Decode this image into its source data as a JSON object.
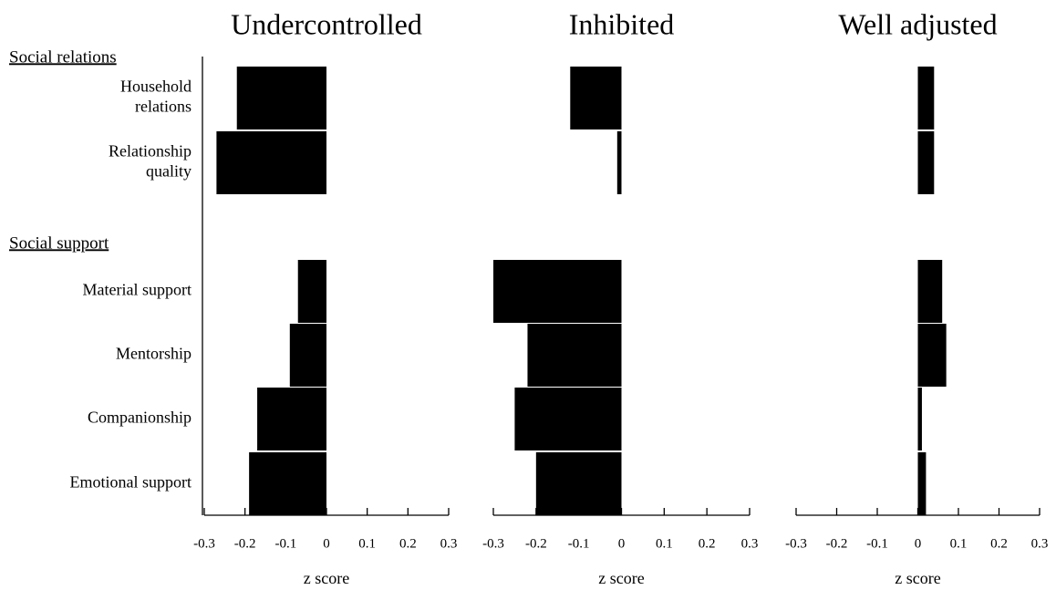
{
  "groups": [
    "Social relations",
    "Social support"
  ],
  "chart_data": [
    {
      "type": "bar",
      "title": "Undercontrolled",
      "categories": [
        "Household relations",
        "Relationship quality",
        "Material support",
        "Mentorship",
        "Companionship",
        "Emotional support"
      ],
      "values": [
        -0.22,
        -0.27,
        -0.07,
        -0.09,
        -0.17,
        -0.19
      ],
      "color": "#000000",
      "xlim": [
        -0.3,
        0.3
      ],
      "xticks": [
        -0.3,
        -0.2,
        -0.1,
        0,
        0.1,
        0.2,
        0.3
      ],
      "xlabel": "z score"
    },
    {
      "type": "bar",
      "title": "Inhibited",
      "values": [
        -0.12,
        -0.01,
        -0.3,
        -0.22,
        -0.25,
        -0.2
      ],
      "color": "#000000",
      "xlim": [
        -0.3,
        0.3
      ],
      "xticks": [
        -0.3,
        -0.2,
        -0.1,
        0,
        0.1,
        0.2,
        0.3
      ],
      "xlabel": "z score"
    },
    {
      "type": "bar",
      "title": "Well adjusted",
      "values": [
        0.04,
        0.04,
        0.06,
        0.07,
        0.01,
        0.02
      ],
      "color": "#000000",
      "xlim": [
        -0.3,
        0.3
      ],
      "xticks": [
        -0.3,
        -0.2,
        -0.1,
        0,
        0.1,
        0.2,
        0.3
      ],
      "xlabel": "z score"
    }
  ]
}
